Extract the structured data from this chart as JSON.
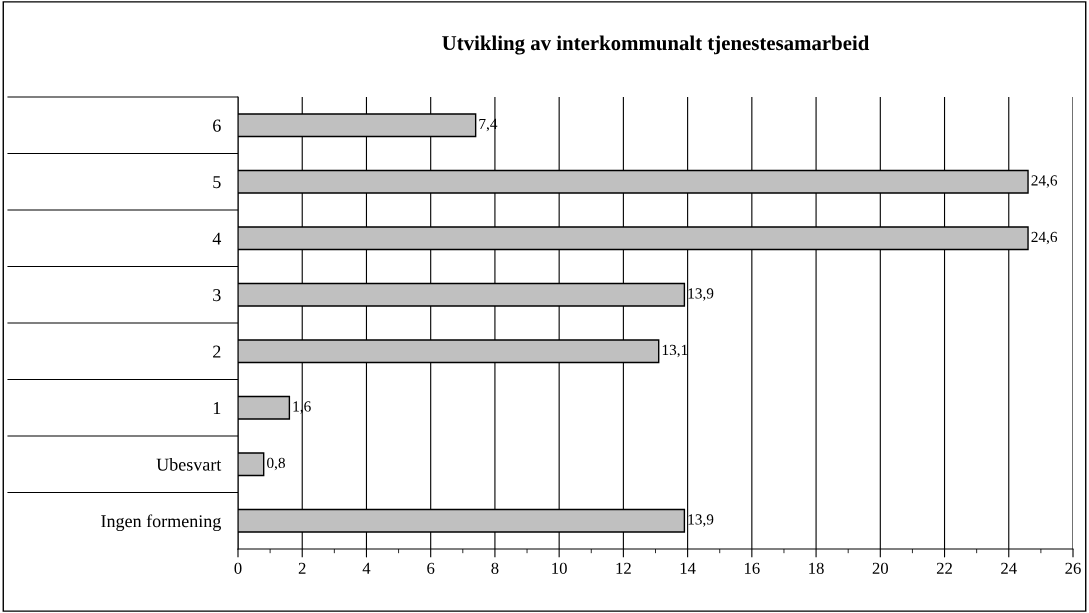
{
  "chart_data": {
    "type": "bar",
    "orientation": "horizontal",
    "title": "Utvikling av interkommunalt tjenestesamarbeid",
    "categories": [
      "6",
      "5",
      "4",
      "3",
      "2",
      "1",
      "Ubesvart",
      "Ingen formening"
    ],
    "values": [
      7.4,
      24.6,
      24.6,
      13.9,
      13.1,
      1.6,
      0.8,
      13.9
    ],
    "value_labels": [
      "7,4",
      "24,6",
      "24,6",
      "13,9",
      "13,1",
      "1,6",
      "0,8",
      "13,9"
    ],
    "color": "#c0c0c0",
    "xlim": [
      0,
      26
    ],
    "xticks": [
      0,
      2,
      4,
      6,
      8,
      10,
      12,
      14,
      16,
      18,
      20,
      22,
      24,
      26
    ],
    "grid": "x",
    "legend": false
  }
}
